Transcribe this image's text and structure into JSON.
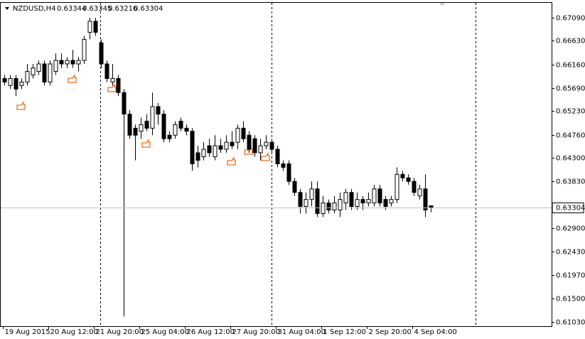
{
  "chart_data": {
    "type": "candlestick",
    "title": "NZDUSD,H4",
    "categories": [
      "19 Aug 2015",
      null,
      null,
      null,
      null,
      null,
      null,
      null,
      "20 Aug 12:00",
      null,
      null,
      null,
      null,
      null,
      null,
      null,
      "21 Aug 20:00",
      null,
      null,
      null,
      null,
      null,
      null,
      null,
      "25 Aug 04:00",
      null,
      null,
      null,
      null,
      null,
      null,
      null,
      "26 Aug 12:00",
      null,
      null,
      null,
      null,
      null,
      null,
      null,
      "27 Aug 20:00",
      null,
      null,
      null,
      null,
      null,
      null,
      null,
      "31 Aug 04:00",
      null,
      null,
      null,
      null,
      null,
      null,
      null,
      "1 Sep 12:00",
      null,
      null,
      null,
      null,
      null,
      null,
      null,
      "2 Sep 20:00",
      null,
      null,
      null,
      null,
      null,
      null,
      null,
      "4 Sep 04:00",
      null,
      null,
      null
    ],
    "open": [
      0.6588,
      0.6574,
      0.6588,
      0.6574,
      0.6581,
      0.6595,
      0.6602,
      0.6617,
      0.6581,
      0.6602,
      0.6624,
      0.6617,
      0.6624,
      0.6617,
      0.6624,
      0.668,
      0.6702,
      0.6659,
      0.6617,
      0.6581,
      0.6588,
      0.656,
      0.6517,
      0.6489,
      0.6483,
      0.6503,
      0.6489,
      0.6532,
      0.6517,
      0.6475,
      0.6475,
      0.6503,
      0.6489,
      0.6483,
      0.644,
      0.6432,
      0.6454,
      0.6432,
      0.6454,
      0.6447,
      0.6461,
      0.6461,
      0.6489,
      0.6475,
      0.6468,
      0.644,
      0.6454,
      0.6461,
      0.6447,
      0.6418,
      0.6418,
      0.6383,
      0.6361,
      0.6333,
      0.6347,
      0.6368,
      0.6319,
      0.634,
      0.6326,
      0.6326,
      0.634,
      0.6361,
      0.6333,
      0.6347,
      0.634,
      0.634,
      0.6368,
      0.6347,
      0.634,
      0.6347,
      0.6397,
      0.639,
      0.6383,
      0.6354,
      0.6368,
      0.63344
    ],
    "high": [
      0.6595,
      0.6595,
      0.6595,
      0.6588,
      0.6617,
      0.6617,
      0.6624,
      0.6624,
      0.6624,
      0.6638,
      0.6638,
      0.6631,
      0.6645,
      0.6631,
      0.6673,
      0.6709,
      0.6709,
      0.6666,
      0.6624,
      0.6617,
      0.6595,
      0.6567,
      0.6525,
      0.6496,
      0.651,
      0.6517,
      0.656,
      0.6539,
      0.6525,
      0.6483,
      0.6503,
      0.651,
      0.6496,
      0.6489,
      0.6454,
      0.6461,
      0.6468,
      0.6475,
      0.6468,
      0.6475,
      0.6483,
      0.6496,
      0.6503,
      0.6483,
      0.6475,
      0.6468,
      0.6475,
      0.6468,
      0.6454,
      0.6425,
      0.6425,
      0.639,
      0.6368,
      0.6361,
      0.6383,
      0.6383,
      0.6354,
      0.6347,
      0.6354,
      0.6361,
      0.6368,
      0.6368,
      0.6361,
      0.6354,
      0.6361,
      0.6376,
      0.6376,
      0.6354,
      0.6354,
      0.6411,
      0.6404,
      0.6397,
      0.639,
      0.6376,
      0.6397,
      0.63345
    ],
    "low": [
      0.6574,
      0.6567,
      0.6553,
      0.6567,
      0.6574,
      0.6588,
      0.6595,
      0.6574,
      0.6574,
      0.6595,
      0.6609,
      0.6609,
      0.6609,
      0.6602,
      0.6617,
      0.6666,
      0.6673,
      0.6609,
      0.6581,
      0.6574,
      0.6553,
      0.6114,
      0.6468,
      0.6425,
      0.6468,
      0.6483,
      0.6475,
      0.6496,
      0.6461,
      0.6461,
      0.6468,
      0.6483,
      0.6475,
      0.6404,
      0.6411,
      0.6425,
      0.6432,
      0.6425,
      0.644,
      0.644,
      0.6447,
      0.6447,
      0.6461,
      0.644,
      0.6432,
      0.6425,
      0.6447,
      0.644,
      0.6411,
      0.6404,
      0.6376,
      0.6354,
      0.6319,
      0.6319,
      0.6333,
      0.6312,
      0.6312,
      0.6319,
      0.6319,
      0.6312,
      0.6326,
      0.6326,
      0.6326,
      0.6326,
      0.6333,
      0.6333,
      0.6333,
      0.6326,
      0.6333,
      0.634,
      0.6383,
      0.6376,
      0.6354,
      0.6347,
      0.6312,
      0.63216
    ],
    "close": [
      0.6581,
      0.6588,
      0.6567,
      0.6581,
      0.6602,
      0.6609,
      0.6617,
      0.6581,
      0.6617,
      0.6624,
      0.6617,
      0.6624,
      0.6617,
      0.6624,
      0.6666,
      0.6702,
      0.668,
      0.6617,
      0.6588,
      0.6588,
      0.656,
      0.6517,
      0.6475,
      0.6475,
      0.6496,
      0.6489,
      0.6532,
      0.6517,
      0.6468,
      0.6468,
      0.6496,
      0.6489,
      0.6483,
      0.6418,
      0.6425,
      0.6447,
      0.644,
      0.6454,
      0.6447,
      0.6461,
      0.6454,
      0.6489,
      0.6468,
      0.6447,
      0.644,
      0.6454,
      0.6461,
      0.6447,
      0.6418,
      0.6411,
      0.6383,
      0.6361,
      0.6333,
      0.6347,
      0.6368,
      0.6319,
      0.634,
      0.6326,
      0.634,
      0.6347,
      0.6361,
      0.6333,
      0.6347,
      0.634,
      0.6347,
      0.6368,
      0.634,
      0.6333,
      0.6347,
      0.6397,
      0.639,
      0.6383,
      0.6361,
      0.6368,
      0.6326,
      0.63304
    ],
    "ylim": [
      0.60945,
      0.67387
    ],
    "yticks": [
      {
        "value": 0.6709,
        "label": "0.67090"
      },
      {
        "value": 0.6663,
        "label": "0.66630"
      },
      {
        "value": 0.6616,
        "label": "0.66160"
      },
      {
        "value": 0.6569,
        "label": "0.65690"
      },
      {
        "value": 0.6523,
        "label": "0.65230"
      },
      {
        "value": 0.6476,
        "label": "0.64760"
      },
      {
        "value": 0.643,
        "label": "0.64300"
      },
      {
        "value": 0.6383,
        "label": "0.63830"
      },
      {
        "value": 0.629,
        "label": "0.62900"
      },
      {
        "value": 0.6243,
        "label": "0.62430"
      },
      {
        "value": 0.6197,
        "label": "0.61970"
      },
      {
        "value": 0.615,
        "label": "0.61500"
      },
      {
        "value": 0.6103,
        "label": "0.61030"
      }
    ],
    "up_color": "#ffffff",
    "down_color": "#000000"
  }
}
